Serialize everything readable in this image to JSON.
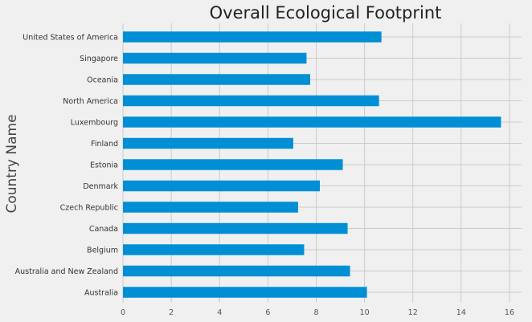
{
  "chart_data": {
    "type": "bar",
    "orientation": "horizontal",
    "title": "Overall Ecological Footprint",
    "xlabel": "",
    "ylabel": "Country Name",
    "categories": [
      "Australia",
      "Australia and New Zealand",
      "Belgium",
      "Canada",
      "Czech Republic",
      "Denmark",
      "Estonia",
      "Finland",
      "Luxembourg",
      "North America",
      "Oceania",
      "Singapore",
      "United States of America"
    ],
    "values": [
      10.1,
      9.4,
      7.5,
      9.3,
      7.25,
      8.15,
      9.1,
      7.05,
      15.65,
      10.6,
      7.75,
      7.6,
      10.7
    ],
    "xlim": [
      0,
      16.5
    ],
    "xticks": [
      0,
      2,
      4,
      6,
      8,
      10,
      12,
      14,
      16
    ],
    "grid": true,
    "bar_color": "#008fd5",
    "grid_color": "#cbcbcb",
    "background": "#f0f0f0"
  }
}
